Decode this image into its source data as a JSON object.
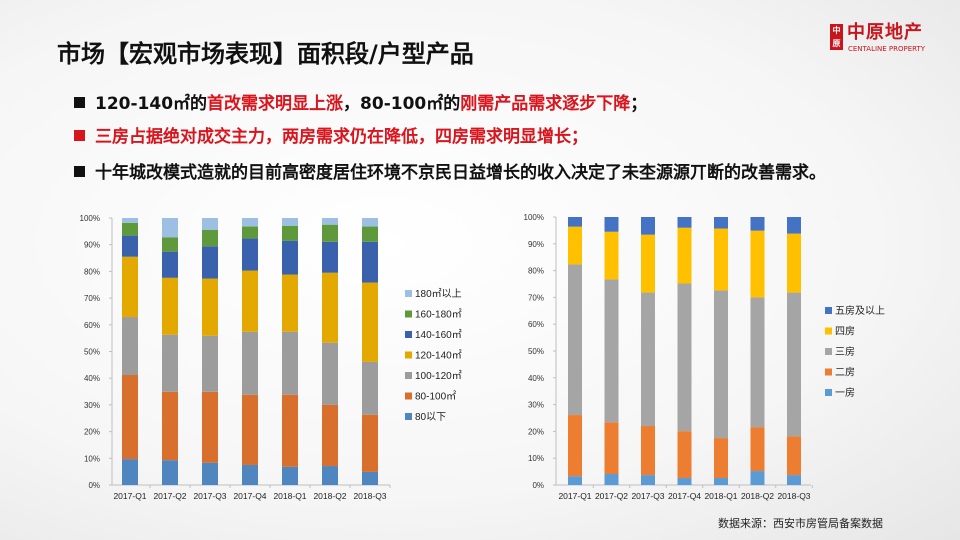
{
  "header": {
    "title": "市场【宏观市场表现】面积段/户型产品",
    "logo": {
      "mark": "中原",
      "cn": "中原地产",
      "en": "CENTALINE PROPERTY",
      "color": "#c8161d"
    }
  },
  "bullets": [
    {
      "parts": [
        {
          "text": "120-140㎡的",
          "red": false
        },
        {
          "text": "首改需求明显上涨",
          "red": true
        },
        {
          "text": "，80-100㎡的",
          "red": false
        },
        {
          "text": "刚需产品需求逐步下降",
          "red": true
        },
        {
          "text": "；",
          "red": false
        }
      ]
    },
    {
      "parts": [
        {
          "text": "三房占据绝对成交主力，两房需求仍在降低，四房需求明显增长；",
          "red": true
        }
      ]
    },
    {
      "parts": [
        {
          "text": "十年城改模式造就的目前高密度居住环境不京民日益增长的收入决定了未杢源源丌断的改善需求。",
          "red": false
        }
      ]
    }
  ],
  "source_note": "数据来源：西安市房管局备案数据",
  "chart_data": [
    {
      "type": "bar",
      "stacked": "percent",
      "categories": [
        "2017-Q1",
        "2017-Q2",
        "2017-Q3",
        "2017-Q4",
        "2018-Q1",
        "2018-Q2",
        "2018-Q3"
      ],
      "ylim": [
        0,
        100
      ],
      "yticks": [
        "0%",
        "10%",
        "20%",
        "30%",
        "40%",
        "50%",
        "60%",
        "70%",
        "80%",
        "90%",
        "100%"
      ],
      "grid": false,
      "legend_position": "right",
      "series": [
        {
          "name": "80以下",
          "color": "#4f86c0",
          "values": [
            9.7,
            9.3,
            8.3,
            7.5,
            6.8,
            7.1,
            4.9
          ]
        },
        {
          "name": "80-100㎡",
          "color": "#d86f2d",
          "values": [
            31.5,
            25.6,
            26.6,
            26.3,
            27.0,
            22.9,
            21.4
          ]
        },
        {
          "name": "100-120㎡",
          "color": "#9c9c9c",
          "values": [
            21.7,
            21.4,
            21.0,
            23.6,
            23.6,
            23.3,
            19.8
          ]
        },
        {
          "name": "120-140㎡",
          "color": "#e3a900",
          "values": [
            22.6,
            21.3,
            21.4,
            22.9,
            21.4,
            26.2,
            29.7
          ]
        },
        {
          "name": "140-160㎡",
          "color": "#3a62ac",
          "values": [
            7.9,
            9.8,
            12.1,
            12.0,
            12.7,
            11.6,
            15.3
          ]
        },
        {
          "name": "160-180㎡",
          "color": "#5e9a3c",
          "values": [
            4.8,
            5.4,
            6.2,
            4.5,
            5.6,
            6.4,
            5.7
          ]
        },
        {
          "name": "180㎡以上",
          "color": "#9dbfe3",
          "values": [
            1.8,
            7.2,
            4.4,
            3.2,
            2.9,
            2.5,
            3.2
          ]
        }
      ]
    },
    {
      "type": "bar",
      "stacked": "percent",
      "categories": [
        "2017-Q1",
        "2017-Q2",
        "2017-Q3",
        "2017-Q4",
        "2018-Q1",
        "2018-Q2",
        "2018-Q3"
      ],
      "ylim": [
        0,
        100
      ],
      "yticks": [
        "0%",
        "10%",
        "20%",
        "30%",
        "40%",
        "50%",
        "60%",
        "70%",
        "80%",
        "90%",
        "100%"
      ],
      "grid": false,
      "legend_position": "right",
      "series": [
        {
          "name": "一房",
          "color": "#5b9bd5",
          "values": [
            3.3,
            4.1,
            3.7,
            2.6,
            2.6,
            5.2,
            3.7
          ]
        },
        {
          "name": "二房",
          "color": "#ed7d31",
          "values": [
            22.8,
            19.3,
            18.3,
            17.5,
            14.9,
            16.4,
            14.5
          ]
        },
        {
          "name": "三房",
          "color": "#a5a5a5",
          "values": [
            56.2,
            53.3,
            49.8,
            55.1,
            55.1,
            48.4,
            53.6
          ]
        },
        {
          "name": "四房",
          "color": "#ffc000",
          "values": [
            14.1,
            17.8,
            21.6,
            20.8,
            23.1,
            24.9,
            22.0
          ]
        },
        {
          "name": "五房及以上",
          "color": "#4472c4",
          "values": [
            3.6,
            5.5,
            6.6,
            4.0,
            4.3,
            5.1,
            6.2
          ]
        }
      ]
    }
  ]
}
